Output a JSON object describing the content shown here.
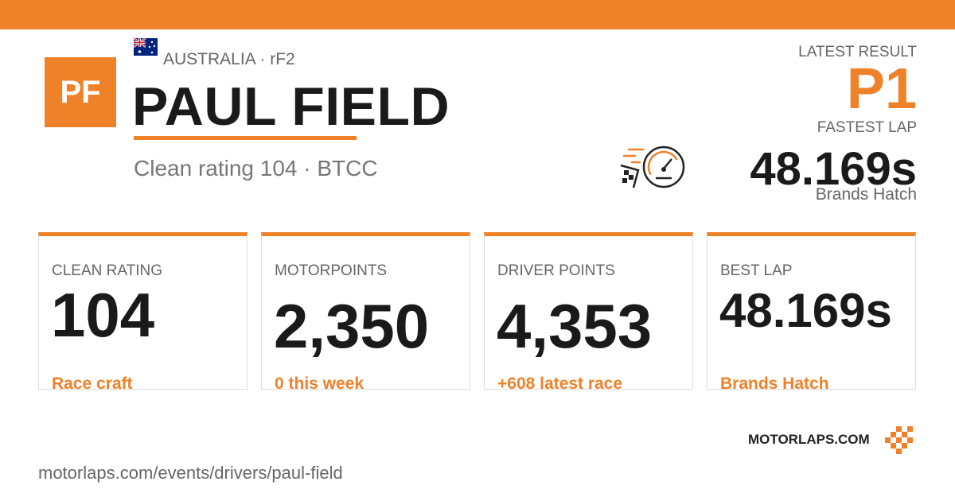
{
  "header": {
    "initials": "PF",
    "country": "AUSTRALIA · rF2",
    "name": "PAUL FIELD",
    "subtitle": "Clean rating 104 · BTCC"
  },
  "latest": {
    "result_label": "LATEST RESULT",
    "result": "P1",
    "lap_label": "FASTEST LAP",
    "lap": "48.169s",
    "track": "Brands Hatch"
  },
  "cards": [
    {
      "label": "CLEAN RATING",
      "value": "104",
      "note": "Race craft"
    },
    {
      "label": "MOTORPOINTS",
      "value": "2,350",
      "note": "0 this week"
    },
    {
      "label": "DRIVER POINTS",
      "value": "4,353",
      "note": "+608 latest race"
    },
    {
      "label": "BEST LAP",
      "value": "48.169s",
      "note": "Brands Hatch"
    }
  ],
  "footer": {
    "brand": "MOTORLAPS.COM",
    "url": "motorlaps.com/events/drivers/paul-field"
  }
}
